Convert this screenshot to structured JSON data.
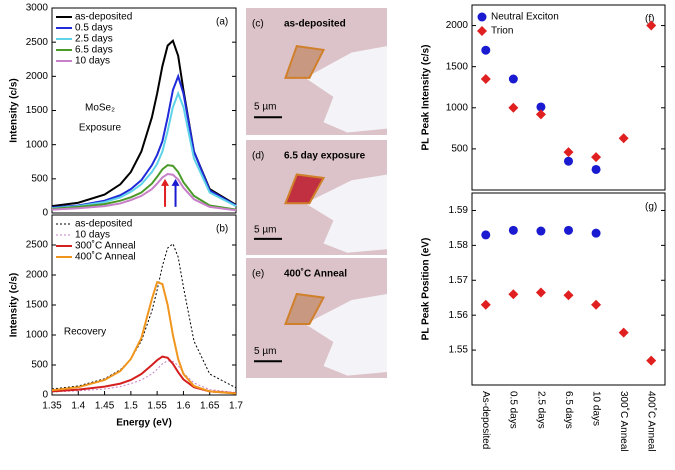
{
  "chart_data": [
    {
      "type": "line",
      "label": "(a)",
      "note": [
        "MoSe₂",
        "Exposure"
      ],
      "ylabel": "Intensity (c/s)",
      "xlim": [
        1.35,
        1.7
      ],
      "ylim": [
        0,
        3000
      ],
      "yticks": [
        0,
        500,
        1000,
        1500,
        2000,
        2500,
        3000
      ],
      "x": [
        1.35,
        1.4,
        1.45,
        1.48,
        1.5,
        1.52,
        1.54,
        1.55,
        1.56,
        1.57,
        1.58,
        1.59,
        1.6,
        1.62,
        1.65,
        1.7
      ],
      "series": [
        {
          "name": "as-deposited",
          "color": "#000000",
          "values": [
            100,
            150,
            270,
            420,
            600,
            900,
            1400,
            1750,
            2150,
            2450,
            2520,
            2300,
            1800,
            900,
            350,
            120
          ]
        },
        {
          "name": "0.5 days",
          "color": "#1f2bd8",
          "values": [
            80,
            110,
            180,
            260,
            350,
            480,
            700,
            850,
            1050,
            1400,
            1800,
            2000,
            1750,
            900,
            330,
            110
          ]
        },
        {
          "name": "2.5 days",
          "color": "#5fd3e8",
          "values": [
            70,
            100,
            160,
            230,
            310,
            420,
            600,
            720,
            900,
            1200,
            1550,
            1750,
            1550,
            800,
            300,
            100
          ]
        },
        {
          "name": "6.5 days",
          "color": "#4a9a2a",
          "values": [
            60,
            90,
            130,
            180,
            230,
            300,
            430,
            530,
            640,
            700,
            690,
            600,
            450,
            250,
            110,
            50
          ]
        },
        {
          "name": "10 days",
          "color": "#c77fc8",
          "values": [
            50,
            70,
            100,
            140,
            190,
            250,
            350,
            430,
            520,
            570,
            560,
            490,
            370,
            200,
            90,
            40
          ]
        }
      ]
    },
    {
      "type": "line",
      "label": "(b)",
      "note": [
        "Recovery"
      ],
      "ylabel": "Intensity (c/s)",
      "xlabel": "Energy (eV)",
      "xlim": [
        1.35,
        1.7
      ],
      "xticks": [
        1.35,
        1.4,
        1.45,
        1.5,
        1.55,
        1.6,
        1.65,
        1.7
      ],
      "ylim": [
        0,
        3000
      ],
      "yticks": [
        0,
        500,
        1000,
        1500,
        2000,
        2500
      ],
      "x": [
        1.35,
        1.4,
        1.45,
        1.48,
        1.5,
        1.52,
        1.54,
        1.55,
        1.56,
        1.57,
        1.58,
        1.59,
        1.6,
        1.62,
        1.65,
        1.7
      ],
      "series": [
        {
          "name": "as-deposited",
          "color": "#000000",
          "dash": true,
          "values": [
            100,
            150,
            270,
            420,
            600,
            900,
            1400,
            1750,
            2150,
            2450,
            2520,
            2300,
            1800,
            900,
            350,
            120
          ]
        },
        {
          "name": "10 days",
          "color": "#c77fc8",
          "dash": true,
          "values": [
            50,
            70,
            100,
            140,
            190,
            250,
            350,
            430,
            520,
            570,
            560,
            490,
            370,
            200,
            90,
            40
          ]
        },
        {
          "name": "300˚C Anneal",
          "color": "#d42020",
          "values": [
            60,
            90,
            140,
            190,
            250,
            350,
            500,
            580,
            640,
            620,
            520,
            380,
            260,
            130,
            60,
            30
          ]
        },
        {
          "name": "400˚C Anneal",
          "color": "#f0961e",
          "values": [
            80,
            130,
            250,
            400,
            600,
            950,
            1600,
            1880,
            1850,
            1500,
            1000,
            600,
            350,
            150,
            60,
            25
          ]
        }
      ]
    },
    {
      "type": "scatter",
      "label": "(f)",
      "ylabel": "PL Peak Intensity (c/s)",
      "ylim": [
        0,
        2250
      ],
      "yticks": [
        500,
        1000,
        1500,
        2000
      ],
      "series": [
        {
          "name": "Neutral Exciton",
          "color": "#1a1ad0",
          "marker": "circle",
          "values": [
            1700,
            1350,
            1010,
            350,
            250,
            null,
            null
          ]
        },
        {
          "name": "Trion",
          "color": "#e02020",
          "marker": "diamond",
          "values": [
            1350,
            1000,
            920,
            460,
            400,
            630,
            2000
          ]
        }
      ]
    },
    {
      "type": "scatter",
      "label": "(g)",
      "ylabel": "PL Peak Position (eV)",
      "categories": [
        "As-deposited",
        "0.5 days",
        "2.5 days",
        "6.5 days",
        "10 days",
        "300˚C Anneal",
        "400˚C Anneal"
      ],
      "ylim": [
        1.54,
        1.595
      ],
      "yticks": [
        1.55,
        1.56,
        1.57,
        1.58,
        1.59
      ],
      "series": [
        {
          "color": "#1a1ad0",
          "marker": "circle",
          "values": [
            1.583,
            1.5843,
            1.5841,
            1.5843,
            1.5835,
            null,
            null
          ]
        },
        {
          "color": "#e02020",
          "marker": "diamond",
          "values": [
            1.563,
            1.566,
            1.5665,
            1.5657,
            1.563,
            1.555,
            1.547
          ]
        }
      ]
    }
  ],
  "micrographs": [
    {
      "label": "(c)",
      "caption": "as-deposited",
      "caption_color": "#000000",
      "scale": "5 µm"
    },
    {
      "label": "(d)",
      "caption": "6.5 day exposure",
      "caption_color": "#3a8a1a",
      "scale": "5 µm"
    },
    {
      "label": "(e)",
      "caption": "400˚C Anneal",
      "caption_color": "#c8204a",
      "scale": "5 µm"
    }
  ]
}
